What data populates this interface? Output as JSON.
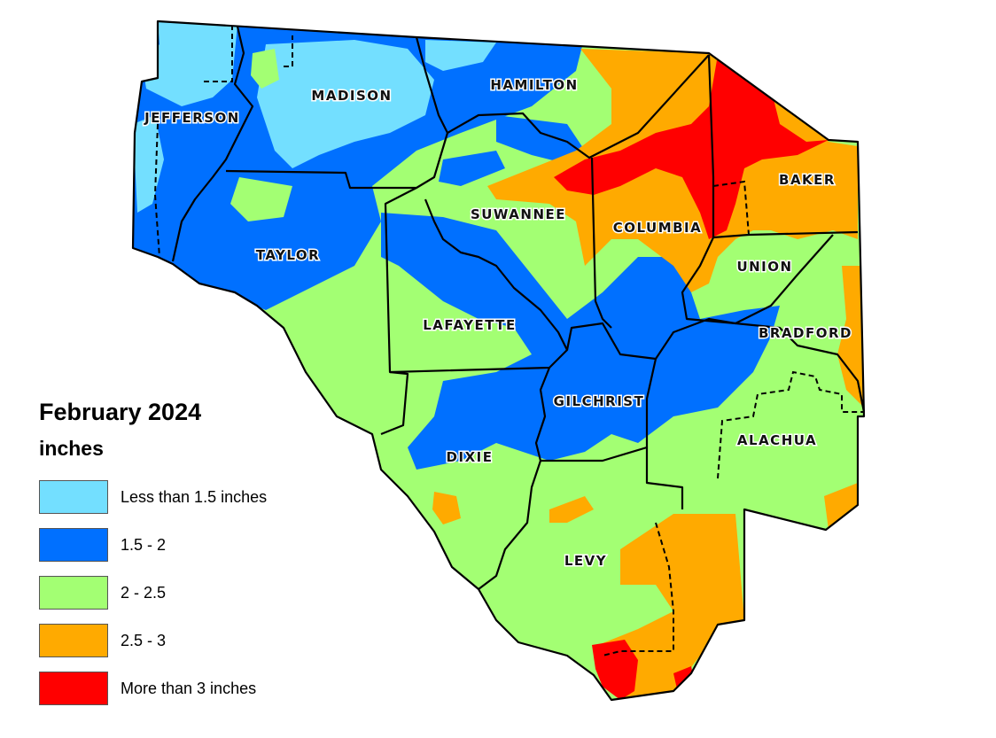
{
  "legend": {
    "title": "February 2024",
    "units": "inches",
    "classes": [
      {
        "label": "Less than 1.5 inches",
        "color": "#73dfff"
      },
      {
        "label": "1.5 - 2",
        "color": "#0070ff"
      },
      {
        "label": "2 - 2.5",
        "color": "#a3ff73"
      },
      {
        "label": "2.5 - 3",
        "color": "#ffaa00"
      },
      {
        "label": "More than 3 inches",
        "color": "#ff0000"
      }
    ]
  },
  "counties": {
    "jefferson": "JEFFERSON",
    "madison": "MADISON",
    "hamilton": "HAMILTON",
    "taylor": "TAYLOR",
    "suwannee": "SUWANNEE",
    "columbia": "COLUMBIA",
    "baker": "BAKER",
    "union": "UNION",
    "lafayette": "LAFAYETTE",
    "bradford": "BRADFORD",
    "gilchrist": "GILCHRIST",
    "alachua": "ALACHUA",
    "dixie": "DIXIE",
    "levy": "LEVY"
  }
}
